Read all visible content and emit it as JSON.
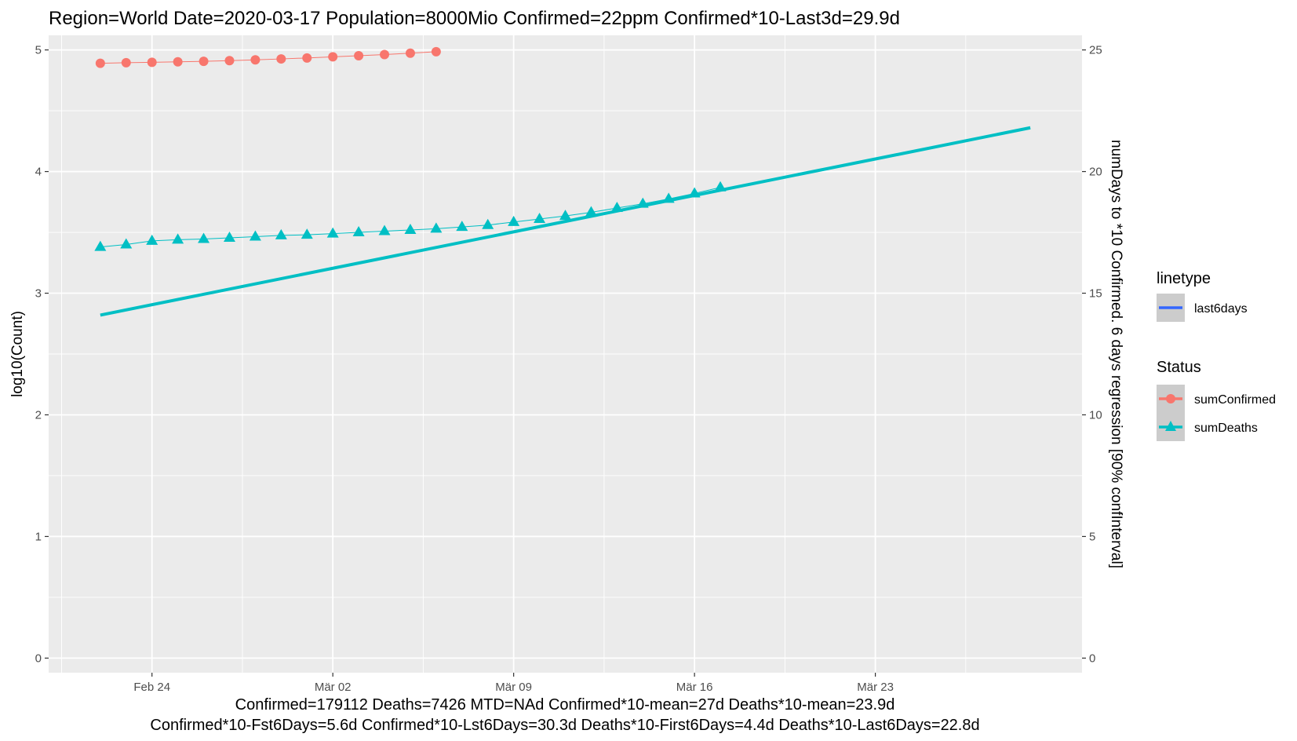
{
  "chart_data": {
    "type": "line",
    "title": "Region=World Date=2020-03-17  Population=8000Mio Confirmed=22ppm  Confirmed*10-Last3d=29.9d",
    "ylabel": "log10(Count)",
    "ylabel_right": "numDays to *10 Confirmed. 6 days regression [90% confInterval]",
    "ylim": [
      -0.12,
      5.12
    ],
    "ylim_right": [
      -0.6,
      25.6
    ],
    "x_ticks": [
      "Feb 24",
      "Mär 02",
      "Mär 09",
      "Mär 16",
      "Mär 23"
    ],
    "x_tick_dates": [
      "2020-02-24",
      "2020-03-02",
      "2020-03-09",
      "2020-03-16",
      "2020-03-23"
    ],
    "xlim": [
      "2020-02-20",
      "2020-03-31"
    ],
    "y_ticks": [
      "0",
      "1",
      "2",
      "3",
      "4",
      "5"
    ],
    "y_ticks_right": [
      "0",
      "5",
      "10",
      "15",
      "20",
      "25"
    ],
    "grid": true,
    "legend_position": "right",
    "captions": [
      "Confirmed=179112 Deaths=7426  MTD=NAd   Confirmed*10-mean=27d  Deaths*10-mean=23.9d",
      "Confirmed*10-Fst6Days=5.6d  Confirmed*10-Lst6Days=30.3d    Deaths*10-First6Days=4.4d  Deaths*10-Last6Days=22.8d"
    ],
    "legend_linetype": {
      "title": "linetype",
      "items": [
        {
          "label": "last6days",
          "color": "#3366ff"
        }
      ]
    },
    "legend_status": {
      "title": "Status",
      "items": [
        {
          "label": "sumConfirmed",
          "color": "#f8766d",
          "marker": "circle"
        },
        {
          "label": "sumDeaths",
          "color": "#00bfc4",
          "marker": "triangle"
        }
      ]
    },
    "series": [
      {
        "name": "sumConfirmed",
        "color": "#f8766d",
        "marker": "circle",
        "x": [
          "2020-02-22",
          "2020-02-23",
          "2020-02-24",
          "2020-02-25",
          "2020-02-26",
          "2020-02-27",
          "2020-02-28",
          "2020-02-29",
          "2020-03-01",
          "2020-03-02",
          "2020-03-03",
          "2020-03-04",
          "2020-03-05",
          "2020-03-06"
        ],
        "y": [
          4.89,
          4.895,
          4.898,
          4.902,
          4.906,
          4.912,
          4.918,
          4.926,
          4.934,
          4.943,
          4.952,
          4.962,
          4.973,
          4.985
        ]
      },
      {
        "name": "sumDeaths",
        "color": "#00bfc4",
        "marker": "triangle",
        "x": [
          "2020-02-22",
          "2020-02-23",
          "2020-02-24",
          "2020-02-25",
          "2020-02-26",
          "2020-02-27",
          "2020-02-28",
          "2020-02-29",
          "2020-03-01",
          "2020-03-02",
          "2020-03-03",
          "2020-03-04",
          "2020-03-05",
          "2020-03-06",
          "2020-03-07",
          "2020-03-08",
          "2020-03-09",
          "2020-03-10",
          "2020-03-11",
          "2020-03-12",
          "2020-03-13",
          "2020-03-14",
          "2020-03-15",
          "2020-03-16",
          "2020-03-17"
        ],
        "y": [
          3.38,
          3.4,
          3.43,
          3.44,
          3.445,
          3.455,
          3.465,
          3.475,
          3.48,
          3.49,
          3.5,
          3.51,
          3.52,
          3.53,
          3.545,
          3.56,
          3.585,
          3.61,
          3.635,
          3.665,
          3.7,
          3.735,
          3.775,
          3.82,
          3.87
        ]
      },
      {
        "name": "regression",
        "color": "#00bfc4",
        "axis": "right",
        "x": [
          "2020-02-22",
          "2020-03-29"
        ],
        "y": [
          14.1,
          21.8
        ]
      }
    ]
  }
}
